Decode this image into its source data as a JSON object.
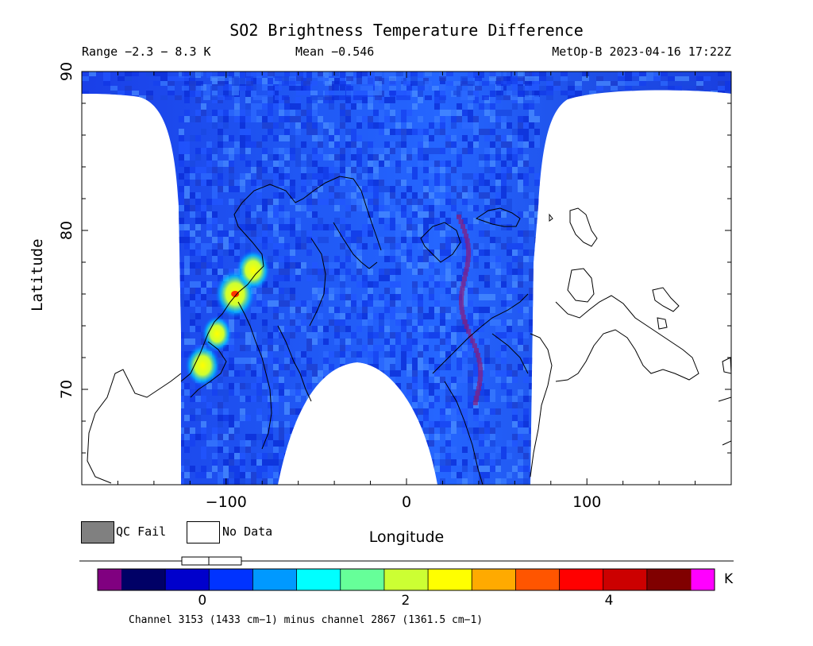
{
  "figure": {
    "title": "SO2 Brightness Temperature Difference",
    "range_text": "Range −2.3 − 8.3 K",
    "mean_text": "Mean −0.546",
    "satellite_text": "MetOp-B 2023-04-16 17:22Z",
    "y_axis_label": "Latitude",
    "x_axis_label": "Longitude",
    "footnote": "Channel 3153 (1433 cm−1) minus channel 2867 (1361.5 cm−1)"
  },
  "legend": {
    "qc_fail_label": "QC Fail",
    "no_data_label": "No Data",
    "qc_fail_color": "#808080",
    "no_data_color": "#ffffff"
  },
  "colorbar": {
    "unit": "K",
    "ticks": [
      {
        "value": 0,
        "label": "0"
      },
      {
        "value": 2,
        "label": "2"
      },
      {
        "value": 4,
        "label": "4"
      }
    ],
    "range": [
      -0.8,
      4.8
    ],
    "underflow_color": "#800080",
    "overflow_color": "#ff00ff",
    "stops": [
      "#000066",
      "#0000cc",
      "#0033ff",
      "#0099ff",
      "#00ffff",
      "#66ff99",
      "#ccff33",
      "#ffff00",
      "#ffaa00",
      "#ff5500",
      "#ff0000",
      "#cc0000",
      "#800000"
    ]
  },
  "chart_data": {
    "type": "heatmap",
    "title": "SO2 Brightness Temperature Difference",
    "xlabel": "Longitude",
    "ylabel": "Latitude",
    "xlim": [
      -180,
      180
    ],
    "ylim": [
      64,
      90
    ],
    "x_ticks": [
      -100,
      0,
      100
    ],
    "y_ticks": [
      70,
      80,
      90
    ],
    "value_units": "K",
    "value_range": [
      -2.3,
      8.3
    ],
    "value_mean": -0.546,
    "background_color": "#1a4dff",
    "hotspots": [
      {
        "lon": -113,
        "lat": 71.5,
        "value": 3.0
      },
      {
        "lon": -105,
        "lat": 73.5,
        "value": 2.2
      },
      {
        "lon": -95,
        "lat": 76.0,
        "value": 3.8
      },
      {
        "lon": -85,
        "lat": 77.5,
        "value": 2.8
      }
    ]
  }
}
